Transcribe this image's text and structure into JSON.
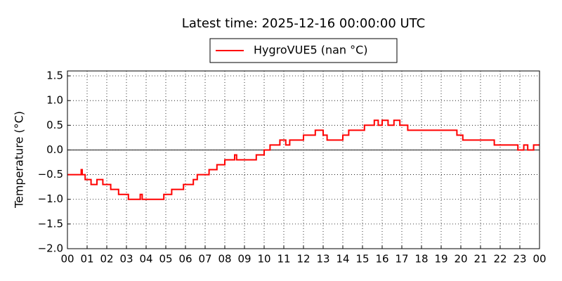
{
  "chart_data": {
    "type": "line",
    "title": "Latest time: 2025-12-16 00:00:00 UTC",
    "y_label": "Temperature (°C)",
    "x": [
      0,
      0.7,
      0.7,
      0.75,
      0.75,
      0.9,
      0.9,
      1.2,
      1.2,
      1.5,
      1.5,
      1.8,
      1.8,
      2.2,
      2.2,
      2.6,
      2.6,
      3.1,
      3.1,
      3.7,
      3.7,
      3.8,
      3.8,
      4.9,
      4.9,
      5.3,
      5.3,
      5.9,
      5.9,
      6.4,
      6.4,
      6.6,
      6.6,
      7.2,
      7.2,
      7.6,
      7.6,
      8.0,
      8.0,
      8.5,
      8.5,
      8.6,
      8.6,
      9.6,
      9.6,
      10.0,
      10.0,
      10.3,
      10.3,
      10.8,
      10.8,
      11.1,
      11.1,
      11.3,
      11.3,
      12.0,
      12.0,
      12.6,
      12.6,
      13.0,
      13.0,
      13.2,
      13.2,
      14.0,
      14.0,
      14.3,
      14.3,
      15.1,
      15.1,
      15.6,
      15.6,
      15.8,
      15.8,
      16.0,
      16.0,
      16.3,
      16.3,
      16.6,
      16.6,
      16.9,
      16.9,
      17.3,
      17.3,
      19.8,
      19.8,
      20.1,
      20.1,
      21.7,
      21.7,
      22.9,
      22.9,
      23.2,
      23.2,
      23.4,
      23.4,
      23.7,
      23.7,
      24
    ],
    "series": [
      {
        "name": "HygroVUE5 (nan °C)",
        "color": "#ff0000",
        "values": [
          -0.5,
          -0.5,
          -0.4,
          -0.4,
          -0.5,
          -0.5,
          -0.6,
          -0.6,
          -0.7,
          -0.7,
          -0.6,
          -0.6,
          -0.7,
          -0.7,
          -0.8,
          -0.8,
          -0.9,
          -0.9,
          -1.0,
          -1.0,
          -0.9,
          -0.9,
          -1.0,
          -1.0,
          -0.9,
          -0.9,
          -0.8,
          -0.8,
          -0.7,
          -0.7,
          -0.6,
          -0.6,
          -0.5,
          -0.5,
          -0.4,
          -0.4,
          -0.3,
          -0.3,
          -0.2,
          -0.2,
          -0.1,
          -0.1,
          -0.2,
          -0.2,
          -0.1,
          -0.1,
          0.0,
          0.0,
          0.1,
          0.1,
          0.2,
          0.2,
          0.1,
          0.1,
          0.2,
          0.2,
          0.3,
          0.3,
          0.4,
          0.4,
          0.3,
          0.3,
          0.2,
          0.2,
          0.3,
          0.3,
          0.4,
          0.4,
          0.5,
          0.5,
          0.6,
          0.6,
          0.5,
          0.5,
          0.6,
          0.6,
          0.5,
          0.5,
          0.6,
          0.6,
          0.5,
          0.5,
          0.4,
          0.4,
          0.3,
          0.3,
          0.2,
          0.2,
          0.1,
          0.1,
          0.0,
          0.0,
          0.1,
          0.1,
          0.0,
          0.0,
          0.1,
          0.1
        ]
      }
    ],
    "xlim": [
      0,
      24
    ],
    "xticks": [
      {
        "value": 0,
        "label": "00"
      },
      {
        "value": 1,
        "label": "01"
      },
      {
        "value": 2,
        "label": "02"
      },
      {
        "value": 3,
        "label": "03"
      },
      {
        "value": 4,
        "label": "04"
      },
      {
        "value": 5,
        "label": "05"
      },
      {
        "value": 6,
        "label": "06"
      },
      {
        "value": 7,
        "label": "07"
      },
      {
        "value": 8,
        "label": "08"
      },
      {
        "value": 9,
        "label": "09"
      },
      {
        "value": 10,
        "label": "10"
      },
      {
        "value": 11,
        "label": "11"
      },
      {
        "value": 12,
        "label": "12"
      },
      {
        "value": 13,
        "label": "13"
      },
      {
        "value": 14,
        "label": "14"
      },
      {
        "value": 15,
        "label": "15"
      },
      {
        "value": 16,
        "label": "16"
      },
      {
        "value": 17,
        "label": "17"
      },
      {
        "value": 18,
        "label": "18"
      },
      {
        "value": 19,
        "label": "19"
      },
      {
        "value": 20,
        "label": "20"
      },
      {
        "value": 21,
        "label": "21"
      },
      {
        "value": 22,
        "label": "22"
      },
      {
        "value": 23,
        "label": "23"
      },
      {
        "value": 24,
        "label": "00"
      }
    ],
    "ylim": [
      -2.0,
      1.6
    ],
    "yticks": [
      {
        "value": -2.0,
        "label": "−2.0"
      },
      {
        "value": -1.5,
        "label": "−1.5"
      },
      {
        "value": -1.0,
        "label": "−1.0"
      },
      {
        "value": -0.5,
        "label": "−0.5"
      },
      {
        "value": 0,
        "label": "0.0"
      },
      0.5,
      {
        "value": 1.0,
        "label": "1.0"
      },
      1.5
    ],
    "grid": true,
    "hline": 0,
    "legend": "top-center"
  }
}
